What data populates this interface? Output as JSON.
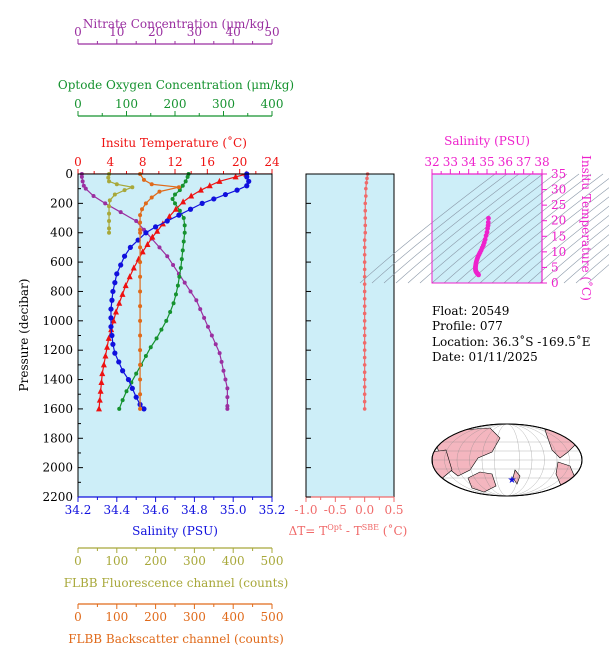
{
  "colors": {
    "plot_bg": "#cdeef8",
    "nitrate": "#9a2fa0",
    "oxygen": "#15922f",
    "temperature": "#ee1111",
    "salinity": "#1010dd",
    "fluorescence": "#a8a83a",
    "backscatter": "#e06a1a",
    "delta_t": "#f06a6a",
    "ts": "#ee22cc",
    "land": "#f4b6bf"
  },
  "axes": {
    "nitrate": {
      "label": "Nitrate Concentration (μm/kg)",
      "ticks": [
        "0",
        "10",
        "20",
        "30",
        "40",
        "50"
      ],
      "range": [
        0,
        50
      ]
    },
    "oxygen": {
      "label": "Optode Oxygen Concentration (μm/kg)",
      "ticks": [
        "0",
        "100",
        "200",
        "300",
        "400"
      ],
      "range": [
        0,
        400
      ]
    },
    "temperature": {
      "label": "Insitu Temperature (˚C)",
      "ticks": [
        "0",
        "4",
        "8",
        "12",
        "16",
        "20",
        "24"
      ],
      "range": [
        0,
        24
      ]
    },
    "pressure": {
      "label": "Pressure (decibar)",
      "ticks": [
        "0",
        "200",
        "400",
        "600",
        "800",
        "1000",
        "1200",
        "1400",
        "1600",
        "1800",
        "2000",
        "2200"
      ],
      "range": [
        0,
        2200
      ]
    },
    "salinity": {
      "label": "Salinity (PSU)",
      "ticks": [
        "34.2",
        "34.4",
        "34.6",
        "34.8",
        "35.0",
        "35.2"
      ],
      "range": [
        34.2,
        35.2
      ]
    },
    "fluorescence": {
      "label": "FLBB Fluorescence channel (counts)",
      "ticks": [
        "0",
        "100",
        "200",
        "300",
        "400",
        "500"
      ],
      "range": [
        0,
        500
      ]
    },
    "backscatter": {
      "label": "FLBB Backscatter channel (counts)",
      "ticks": [
        "0",
        "100",
        "200",
        "300",
        "400",
        "500"
      ],
      "range": [
        0,
        500
      ]
    },
    "delta_t": {
      "ticks": [
        "-1.0",
        "-0.5",
        "0.0",
        "0.5"
      ],
      "range": [
        -1.0,
        0.5
      ],
      "label_main": "ΔT= T",
      "label_sup1": "Opt",
      "label_mid": " - T",
      "label_sup2": "SBE",
      "label_unit": " (˚C)"
    },
    "ts_salinity": {
      "label": "Salinity (PSU)",
      "ticks": [
        "32",
        "33",
        "34",
        "35",
        "36",
        "37",
        "38"
      ],
      "range": [
        32,
        38
      ]
    },
    "ts_temperature": {
      "label": "Insitu Temperature (˚C)",
      "ticks": [
        "0",
        "5",
        "10",
        "15",
        "20",
        "25",
        "30",
        "35"
      ],
      "range": [
        0,
        35
      ]
    }
  },
  "info": {
    "float": "Float:  20549",
    "profile": "Profile:  077",
    "location": "Location:  36.3˚S  -169.5˚E",
    "date": "Date:  01/11/2025"
  },
  "chart_data": [
    {
      "type": "line",
      "name": "Nitrate",
      "x_axis": "nitrate",
      "points": [
        [
          1.0,
          0
        ],
        [
          1.0,
          20
        ],
        [
          1.2,
          50
        ],
        [
          1.5,
          80
        ],
        [
          2.0,
          100
        ],
        [
          4,
          150
        ],
        [
          7,
          200
        ],
        [
          11,
          260
        ],
        [
          15,
          320
        ],
        [
          17,
          380
        ],
        [
          19,
          440
        ],
        [
          21,
          500
        ],
        [
          23,
          560
        ],
        [
          24.5,
          620
        ],
        [
          26,
          680
        ],
        [
          27.5,
          740
        ],
        [
          29,
          800
        ],
        [
          30.5,
          860
        ],
        [
          31.5,
          920
        ],
        [
          32.5,
          980
        ],
        [
          33.5,
          1040
        ],
        [
          34.5,
          1100
        ],
        [
          35.5,
          1160
        ],
        [
          36.5,
          1220
        ],
        [
          37,
          1280
        ],
        [
          37.5,
          1340
        ],
        [
          38,
          1400
        ],
        [
          38.5,
          1460
        ],
        [
          38.5,
          1520
        ],
        [
          38.5,
          1580
        ],
        [
          38.5,
          1600
        ]
      ]
    },
    {
      "type": "line",
      "name": "Oxygen",
      "x_axis": "oxygen",
      "points": [
        [
          228,
          0
        ],
        [
          226,
          20
        ],
        [
          222,
          50
        ],
        [
          216,
          80
        ],
        [
          210,
          110
        ],
        [
          200,
          140
        ],
        [
          195,
          170
        ],
        [
          200,
          200
        ],
        [
          210,
          250
        ],
        [
          218,
          300
        ],
        [
          220,
          350
        ],
        [
          220,
          400
        ],
        [
          218,
          460
        ],
        [
          216,
          520
        ],
        [
          214,
          580
        ],
        [
          212,
          640
        ],
        [
          209,
          700
        ],
        [
          206,
          760
        ],
        [
          202,
          820
        ],
        [
          197,
          880
        ],
        [
          190,
          940
        ],
        [
          182,
          1000
        ],
        [
          172,
          1060
        ],
        [
          162,
          1120
        ],
        [
          150,
          1180
        ],
        [
          140,
          1240
        ],
        [
          130,
          1300
        ],
        [
          120,
          1360
        ],
        [
          110,
          1420
        ],
        [
          100,
          1480
        ],
        [
          92,
          1540
        ],
        [
          85,
          1600
        ]
      ]
    },
    {
      "type": "line",
      "name": "Temperature",
      "x_axis": "temperature",
      "points": [
        [
          20.8,
          0
        ],
        [
          19.5,
          20
        ],
        [
          17.5,
          50
        ],
        [
          16.3,
          80
        ],
        [
          15.2,
          110
        ],
        [
          14.0,
          150
        ],
        [
          13.0,
          190
        ],
        [
          12.1,
          240
        ],
        [
          11.3,
          290
        ],
        [
          10.5,
          340
        ],
        [
          9.8,
          390
        ],
        [
          9.2,
          430
        ],
        [
          8.6,
          480
        ],
        [
          8.0,
          530
        ],
        [
          7.5,
          580
        ],
        [
          6.9,
          640
        ],
        [
          6.4,
          700
        ],
        [
          5.9,
          760
        ],
        [
          5.5,
          820
        ],
        [
          5.1,
          880
        ],
        [
          4.7,
          940
        ],
        [
          4.4,
          1000
        ],
        [
          4.1,
          1060
        ],
        [
          3.8,
          1120
        ],
        [
          3.6,
          1180
        ],
        [
          3.4,
          1240
        ],
        [
          3.2,
          1300
        ],
        [
          3.0,
          1360
        ],
        [
          2.9,
          1420
        ],
        [
          2.8,
          1480
        ],
        [
          2.7,
          1540
        ],
        [
          2.6,
          1600
        ]
      ]
    },
    {
      "type": "line",
      "name": "Salinity",
      "x_axis": "salinity",
      "points": [
        [
          35.07,
          0
        ],
        [
          35.07,
          20
        ],
        [
          35.08,
          50
        ],
        [
          35.07,
          80
        ],
        [
          35.02,
          110
        ],
        [
          34.96,
          140
        ],
        [
          34.9,
          170
        ],
        [
          34.84,
          200
        ],
        [
          34.78,
          240
        ],
        [
          34.72,
          280
        ],
        [
          34.66,
          320
        ],
        [
          34.6,
          360
        ],
        [
          34.55,
          400
        ],
        [
          34.51,
          450
        ],
        [
          34.47,
          500
        ],
        [
          34.44,
          560
        ],
        [
          34.42,
          620
        ],
        [
          34.4,
          680
        ],
        [
          34.39,
          740
        ],
        [
          34.38,
          800
        ],
        [
          34.375,
          860
        ],
        [
          34.37,
          920
        ],
        [
          34.37,
          980
        ],
        [
          34.37,
          1040
        ],
        [
          34.375,
          1100
        ],
        [
          34.38,
          1160
        ],
        [
          34.39,
          1220
        ],
        [
          34.41,
          1280
        ],
        [
          34.43,
          1340
        ],
        [
          34.46,
          1400
        ],
        [
          34.48,
          1460
        ],
        [
          34.5,
          1520
        ],
        [
          34.52,
          1570
        ],
        [
          34.54,
          1600
        ]
      ]
    },
    {
      "type": "line",
      "name": "Fluorescence",
      "x_axis": "fluorescence",
      "points": [
        [
          80,
          0
        ],
        [
          78,
          25
        ],
        [
          80,
          50
        ],
        [
          100,
          70
        ],
        [
          140,
          90
        ],
        [
          120,
          110
        ],
        [
          95,
          140
        ],
        [
          82,
          180
        ],
        [
          80,
          220
        ],
        [
          80,
          270
        ],
        [
          80,
          320
        ],
        [
          80,
          370
        ],
        [
          80,
          400
        ]
      ]
    },
    {
      "type": "line",
      "name": "Backscatter",
      "x_axis": "backscatter",
      "points": [
        [
          160,
          0
        ],
        [
          170,
          40
        ],
        [
          190,
          70
        ],
        [
          260,
          90
        ],
        [
          210,
          120
        ],
        [
          190,
          160
        ],
        [
          175,
          200
        ],
        [
          165,
          240
        ],
        [
          160,
          280
        ],
        [
          160,
          330
        ],
        [
          160,
          380
        ],
        [
          160,
          400
        ],
        [
          160,
          500
        ],
        [
          160,
          600
        ],
        [
          160,
          700
        ],
        [
          160,
          800
        ],
        [
          160,
          900
        ],
        [
          160,
          1000
        ],
        [
          160,
          1100
        ],
        [
          160,
          1200
        ],
        [
          160,
          1300
        ],
        [
          160,
          1400
        ],
        [
          160,
          1500
        ],
        [
          160,
          1600
        ]
      ]
    },
    {
      "type": "line",
      "name": "ΔT",
      "x_axis": "delta_t",
      "points": [
        [
          0.05,
          0
        ],
        [
          0.04,
          30
        ],
        [
          0.03,
          60
        ],
        [
          0.02,
          100
        ],
        [
          0.02,
          150
        ],
        [
          0.01,
          200
        ],
        [
          0.01,
          250
        ],
        [
          0.01,
          300
        ],
        [
          0.01,
          350
        ],
        [
          0.01,
          400
        ],
        [
          0.0,
          450
        ],
        [
          0.0,
          500
        ],
        [
          0.0,
          550
        ],
        [
          0.0,
          600
        ],
        [
          0.0,
          650
        ],
        [
          0.0,
          700
        ],
        [
          0.0,
          750
        ],
        [
          0.0,
          800
        ],
        [
          0.0,
          850
        ],
        [
          0.0,
          900
        ],
        [
          0.0,
          950
        ],
        [
          0.0,
          1000
        ],
        [
          0.0,
          1050
        ],
        [
          0.0,
          1100
        ],
        [
          0.0,
          1150
        ],
        [
          0.0,
          1200
        ],
        [
          0.0,
          1250
        ],
        [
          0.0,
          1300
        ],
        [
          0.0,
          1350
        ],
        [
          0.0,
          1400
        ],
        [
          0.0,
          1450
        ],
        [
          0.0,
          1500
        ],
        [
          0.0,
          1550
        ],
        [
          0.0,
          1600
        ]
      ]
    },
    {
      "type": "scatter",
      "name": "T-S",
      "points": [
        [
          35.08,
          20.8
        ],
        [
          35.07,
          19.5
        ],
        [
          35.06,
          18.5
        ],
        [
          35.03,
          17.5
        ],
        [
          35.0,
          16.3
        ],
        [
          34.95,
          15.2
        ],
        [
          34.9,
          14.0
        ],
        [
          34.85,
          13.0
        ],
        [
          34.8,
          12.1
        ],
        [
          34.74,
          11.3
        ],
        [
          34.68,
          10.5
        ],
        [
          34.62,
          9.8
        ],
        [
          34.57,
          9.2
        ],
        [
          34.52,
          8.6
        ],
        [
          34.48,
          8.0
        ],
        [
          34.45,
          7.5
        ],
        [
          34.42,
          6.9
        ],
        [
          34.4,
          6.4
        ],
        [
          34.39,
          5.9
        ],
        [
          34.38,
          5.5
        ],
        [
          34.37,
          5.1
        ],
        [
          34.37,
          4.7
        ],
        [
          34.37,
          4.4
        ],
        [
          34.38,
          4.1
        ],
        [
          34.39,
          3.8
        ],
        [
          34.41,
          3.6
        ],
        [
          34.43,
          3.4
        ],
        [
          34.46,
          3.2
        ],
        [
          34.48,
          3.0
        ],
        [
          34.5,
          2.9
        ],
        [
          34.52,
          2.8
        ],
        [
          34.54,
          2.6
        ]
      ]
    },
    {
      "type": "map",
      "name": "float-location",
      "lat": -36.3,
      "lon": -169.5
    }
  ]
}
